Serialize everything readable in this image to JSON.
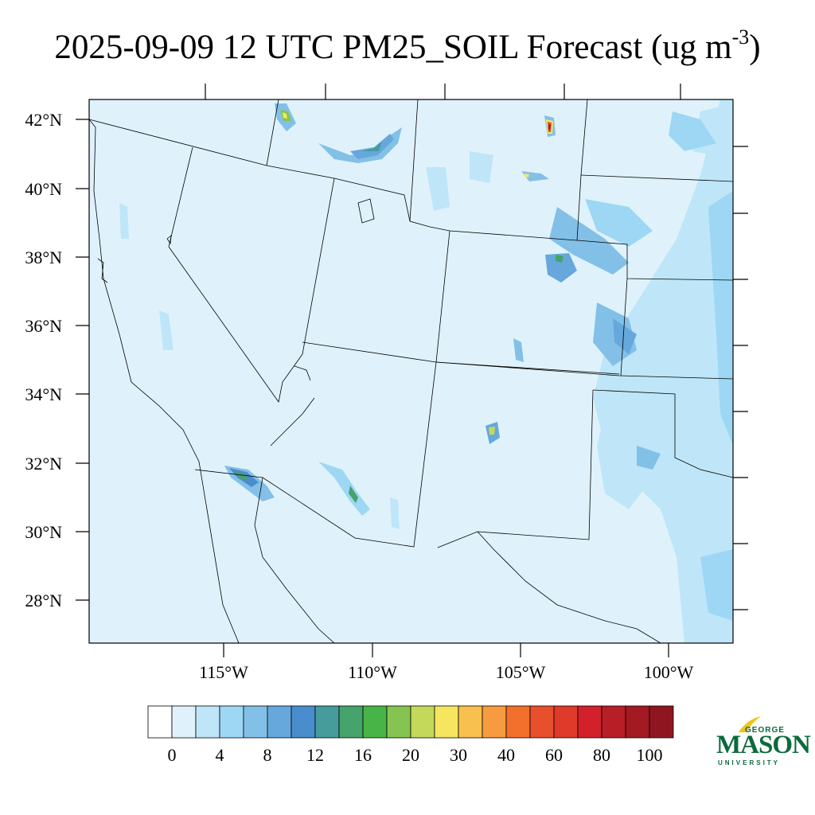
{
  "title": {
    "main": "2025-09-09 12 UTC PM25_SOIL Forecast (ug m",
    "exponent": "-3",
    "close": ")"
  },
  "map": {
    "background_color": "#dff2fb",
    "lat_labels": [
      "42°N",
      "40°N",
      "38°N",
      "36°N",
      "34°N",
      "32°N",
      "30°N",
      "28°N"
    ],
    "lon_labels": [
      "115°W",
      "110°W",
      "105°W",
      "100°W"
    ]
  },
  "colorbar": {
    "colors": [
      "#ffffff",
      "#dff2fb",
      "#bee6f8",
      "#9dd7f4",
      "#83c0e7",
      "#66a8dc",
      "#4a8dcd",
      "#469c9b",
      "#45a36c",
      "#48b447",
      "#86c451",
      "#c4d95a",
      "#f6e65f",
      "#f8c04e",
      "#f79b40",
      "#f26f2c",
      "#e8502d",
      "#df3a2a",
      "#d3212c",
      "#b81e26",
      "#a31a22",
      "#8f1620"
    ],
    "labels": [
      "0",
      "4",
      "8",
      "12",
      "16",
      "20",
      "30",
      "40",
      "60",
      "80",
      "100"
    ]
  },
  "logo": {
    "line1": "GEORGE",
    "line2": "MASON",
    "line3": "UNIVERSITY"
  }
}
